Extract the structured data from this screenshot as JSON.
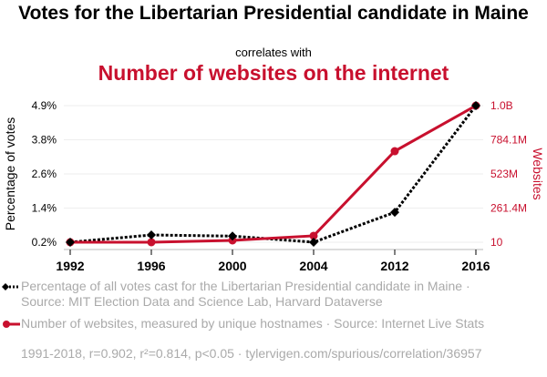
{
  "header": {
    "title": "Votes for the Libertarian Presidential candidate in Maine",
    "correlates": "correlates with",
    "subtitle": "Number of websites on the internet"
  },
  "chart_data": {
    "type": "line",
    "x": [
      1992,
      1996,
      2000,
      2004,
      2012,
      2016
    ],
    "x_tick_labels": [
      "1992",
      "1996",
      "2000",
      "2004",
      "2012",
      "2016"
    ],
    "series": [
      {
        "name": "Percentage of all votes cast for the Libertarian Presidential candidate in Maine",
        "axis": "left",
        "color": "#000000",
        "style": "dotted",
        "marker": "diamond",
        "values": [
          0.2,
          0.45,
          0.41,
          0.2,
          1.23,
          4.9
        ]
      },
      {
        "name": "Number of websites, measured by unique hostnames",
        "axis": "right",
        "color": "#c8102e",
        "style": "solid",
        "marker": "circle",
        "values": [
          10,
          257601,
          14000000,
          49000000,
          697000000,
          1045600000
        ]
      }
    ],
    "left_axis": {
      "label": "Percentage of votes",
      "ticks": [
        "0.2%",
        "1.4%",
        "2.6%",
        "3.8%",
        "4.9%"
      ],
      "range": [
        0.2,
        4.9
      ]
    },
    "right_axis": {
      "label": "Websites",
      "ticks": [
        "10",
        "261.4M",
        "523M",
        "784.1M",
        "1.0B"
      ],
      "range": [
        10,
        1045600000
      ]
    },
    "grid": true
  },
  "legend": {
    "series1": "Percentage of all votes cast for the Libertarian Presidential candidate in Maine · Source: MIT Election Data and Science Lab, Harvard Dataverse",
    "series2": "Number of websites, measured by unique hostnames · Source: Internet Live Stats"
  },
  "footer": "1991-2018, r=0.902, r²=0.814, p<0.05 · tylervigen.com/spurious/correlation/36957"
}
